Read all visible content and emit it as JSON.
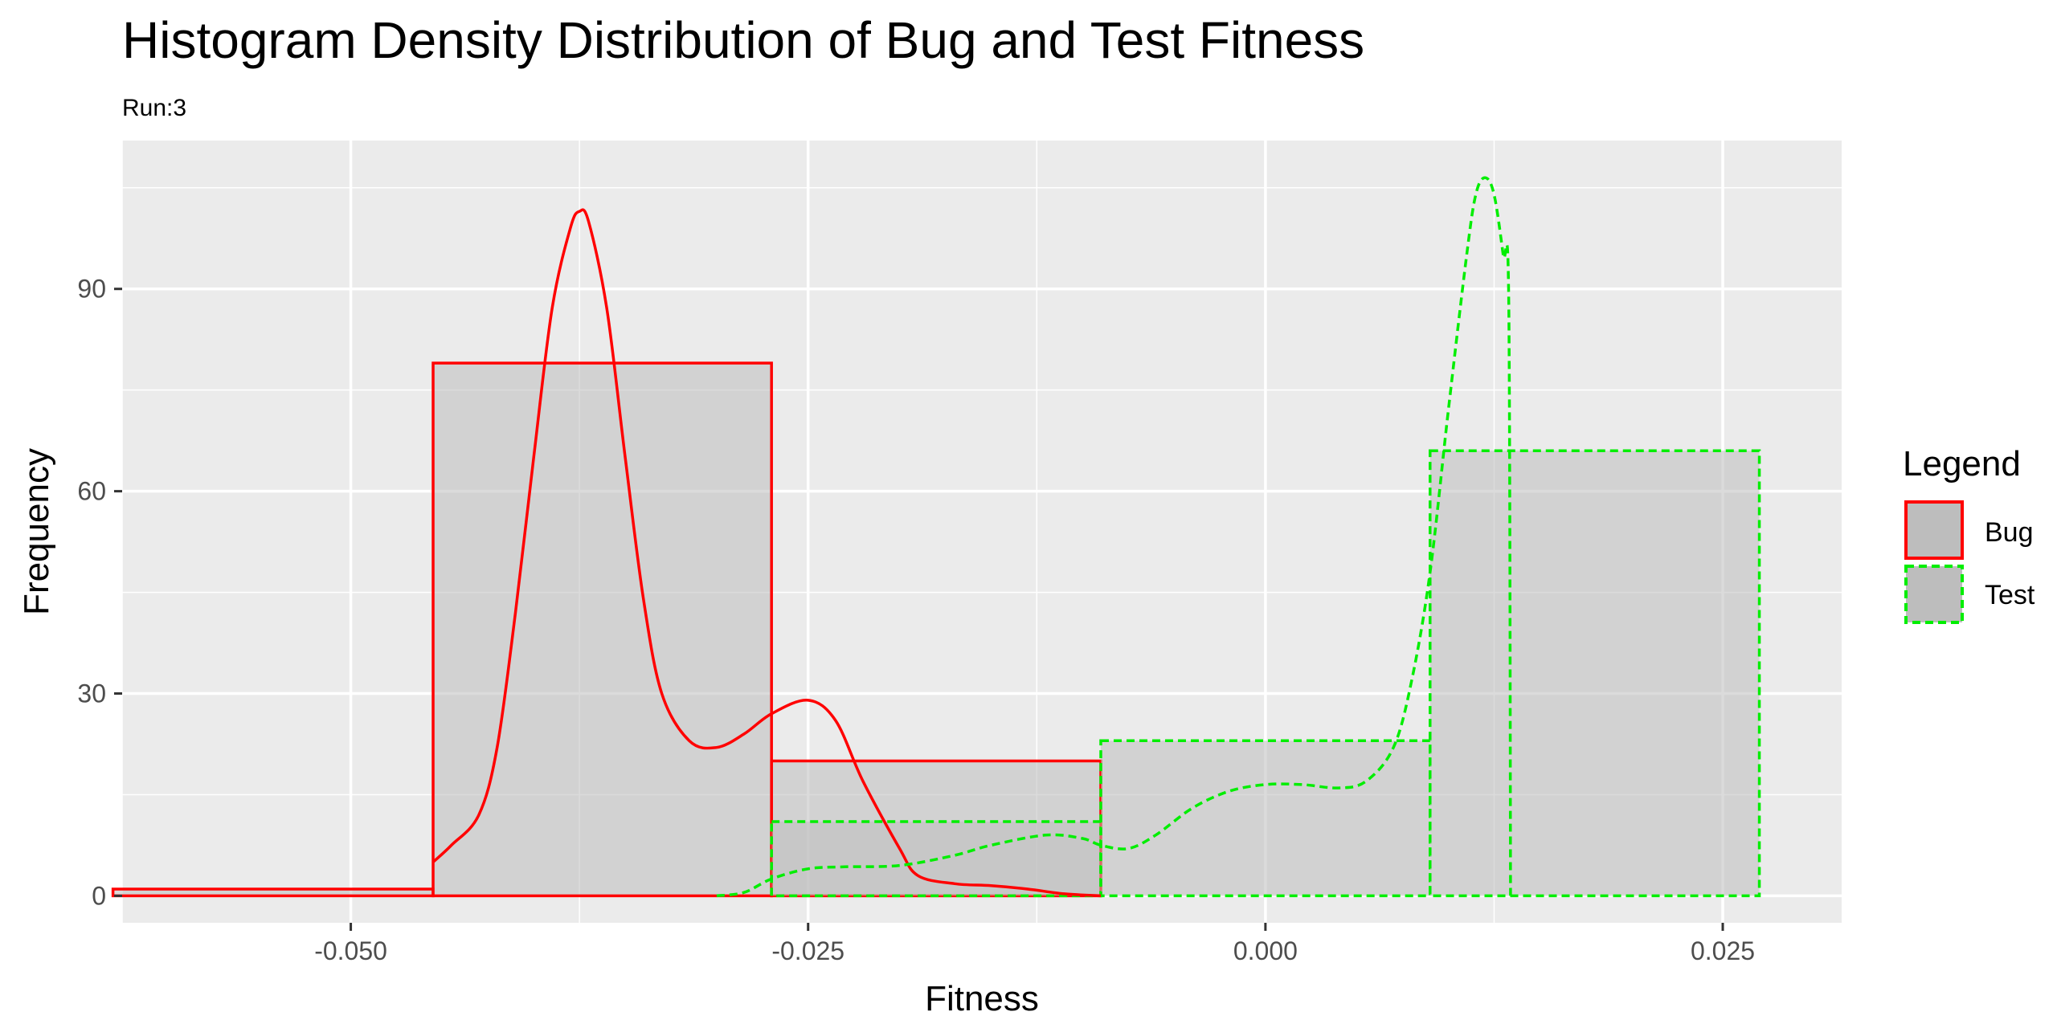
{
  "chart_data": {
    "type": "bar",
    "title": "Histogram Density Distribution of Bug and Test Fitness",
    "subtitle": "Run:3",
    "xlabel": "Fitness",
    "ylabel": "Frequency",
    "xlim": [
      -0.0625,
      0.0315
    ],
    "ylim": [
      -4,
      112
    ],
    "x_ticks": [
      -0.05,
      -0.025,
      0.0,
      0.025
    ],
    "x_tick_labels": [
      "-0.050",
      "-0.025",
      "0.000",
      "0.025"
    ],
    "y_ticks": [
      0,
      30,
      60,
      90
    ],
    "y_tick_labels": [
      "0",
      "30",
      "60",
      "90"
    ],
    "grid": true,
    "legend": {
      "title": "Legend",
      "position": "right",
      "entries": [
        "Bug",
        "Test"
      ]
    },
    "series": [
      {
        "name": "Bug",
        "color": "#ff0000",
        "dashed": false,
        "histogram": {
          "bins": [
            {
              "x0": -0.063,
              "x1": -0.0455,
              "count": 1
            },
            {
              "x0": -0.0455,
              "x1": -0.027,
              "count": 79
            },
            {
              "x0": -0.027,
              "x1": -0.009,
              "count": 20
            }
          ]
        },
        "density": [
          [
            -0.0455,
            5
          ],
          [
            -0.0445,
            7.5
          ],
          [
            -0.043,
            12
          ],
          [
            -0.042,
            22
          ],
          [
            -0.041,
            42
          ],
          [
            -0.04,
            65
          ],
          [
            -0.039,
            87
          ],
          [
            -0.038,
            99
          ],
          [
            -0.0375,
            101.5
          ],
          [
            -0.037,
            100
          ],
          [
            -0.036,
            87
          ],
          [
            -0.035,
            65
          ],
          [
            -0.034,
            44
          ],
          [
            -0.033,
            30
          ],
          [
            -0.0315,
            23
          ],
          [
            -0.03,
            22
          ],
          [
            -0.0285,
            24
          ],
          [
            -0.027,
            27
          ],
          [
            -0.025,
            29
          ],
          [
            -0.0235,
            26
          ],
          [
            -0.022,
            17
          ],
          [
            -0.02,
            7
          ],
          [
            -0.019,
            3
          ],
          [
            -0.017,
            1.8
          ],
          [
            -0.015,
            1.5
          ],
          [
            -0.013,
            1
          ],
          [
            -0.011,
            0.3
          ],
          [
            -0.009,
            0
          ]
        ]
      },
      {
        "name": "Test",
        "color": "#00ee00",
        "dashed": true,
        "histogram": {
          "bins": [
            {
              "x0": -0.063,
              "x1": -0.027,
              "count": 0
            },
            {
              "x0": -0.027,
              "x1": -0.009,
              "count": 11
            },
            {
              "x0": -0.009,
              "x1": 0.009,
              "count": 23
            },
            {
              "x0": 0.009,
              "x1": 0.027,
              "count": 66
            }
          ]
        },
        "density": [
          [
            -0.03,
            0
          ],
          [
            -0.0285,
            0.5
          ],
          [
            -0.027,
            2.5
          ],
          [
            -0.025,
            4
          ],
          [
            -0.023,
            4.3
          ],
          [
            -0.02,
            4.5
          ],
          [
            -0.017,
            6
          ],
          [
            -0.015,
            7.5
          ],
          [
            -0.012,
            9
          ],
          [
            -0.01,
            8.5
          ],
          [
            -0.009,
            7.5
          ],
          [
            -0.0075,
            7
          ],
          [
            -0.006,
            9
          ],
          [
            -0.004,
            13
          ],
          [
            -0.002,
            15.5
          ],
          [
            0.0,
            16.5
          ],
          [
            0.002,
            16.5
          ],
          [
            0.004,
            16
          ],
          [
            0.0055,
            17
          ],
          [
            0.007,
            22
          ],
          [
            0.008,
            32
          ],
          [
            0.009,
            48
          ],
          [
            0.01,
            72
          ],
          [
            0.011,
            95
          ],
          [
            0.0115,
            104
          ],
          [
            0.012,
            106.5
          ],
          [
            0.0125,
            104
          ],
          [
            0.013,
            95
          ],
          [
            0.0133,
            88
          ],
          [
            0.0134,
            0
          ]
        ]
      }
    ]
  }
}
